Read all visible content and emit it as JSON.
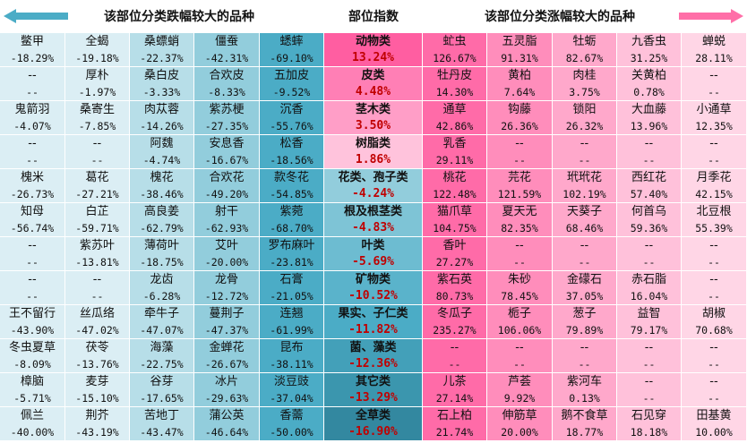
{
  "header": {
    "left_title": "该部位分类跌幅较大的品种",
    "center_title": "部位指数",
    "right_title": "该部位分类涨幅较大的品种",
    "left_arrow_color": "#4bacc6",
    "right_arrow_color": "#ff6fa8"
  },
  "colors": {
    "left_cols": [
      "#dbeef4",
      "#dbeef4",
      "#b7dee8",
      "#92cddc",
      "#4bacc6"
    ],
    "right_cols": [
      "#ff6ba8",
      "#ff8dbb",
      "#ffa8cb",
      "#ffc1da",
      "#ffd6e6"
    ],
    "mid_rows": [
      "#ff5ea1",
      "#ff7fb5",
      "#ff9ec7",
      "#ffc3dc",
      "#92cddc",
      "#7ec4d6",
      "#6dbcd1",
      "#5ab3cb",
      "#4bacc6",
      "#43a0b9",
      "#3b96ae",
      "#3388a0"
    ]
  },
  "rows": [
    {
      "category": {
        "name": "动物类",
        "value": "13.24%"
      },
      "down": [
        {
          "name": "鳖甲",
          "value": "-18.29%"
        },
        {
          "name": "全蝎",
          "value": "-19.18%"
        },
        {
          "name": "桑螵蛸",
          "value": "-22.37%"
        },
        {
          "name": "僵蚕",
          "value": "-42.31%"
        },
        {
          "name": "蟋蟀",
          "value": "-69.10%"
        }
      ],
      "up": [
        {
          "name": "虻虫",
          "value": "126.67%"
        },
        {
          "name": "五灵脂",
          "value": "91.31%"
        },
        {
          "name": "牡蛎",
          "value": "82.67%"
        },
        {
          "name": "九香虫",
          "value": "31.25%"
        },
        {
          "name": "蝉蜕",
          "value": "28.11%"
        }
      ]
    },
    {
      "category": {
        "name": "皮类",
        "value": "4.48%"
      },
      "down": [
        {
          "name": "--",
          "value": "--"
        },
        {
          "name": "厚朴",
          "value": "-1.97%"
        },
        {
          "name": "桑白皮",
          "value": "-3.33%"
        },
        {
          "name": "合欢皮",
          "value": "-8.33%"
        },
        {
          "name": "五加皮",
          "value": "-9.52%"
        }
      ],
      "up": [
        {
          "name": "牡丹皮",
          "value": "14.30%"
        },
        {
          "name": "黄柏",
          "value": "7.64%"
        },
        {
          "name": "肉桂",
          "value": "3.75%"
        },
        {
          "name": "关黄柏",
          "value": "0.78%"
        },
        {
          "name": "--",
          "value": "--"
        }
      ]
    },
    {
      "category": {
        "name": "茎木类",
        "value": "3.50%"
      },
      "down": [
        {
          "name": "鬼箭羽",
          "value": "-4.07%"
        },
        {
          "name": "桑寄生",
          "value": "-7.85%"
        },
        {
          "name": "肉苁蓉",
          "value": "-14.26%"
        },
        {
          "name": "紫苏梗",
          "value": "-27.35%"
        },
        {
          "name": "沉香",
          "value": "-55.76%"
        }
      ],
      "up": [
        {
          "name": "通草",
          "value": "42.86%"
        },
        {
          "name": "钩藤",
          "value": "26.36%"
        },
        {
          "name": "锁阳",
          "value": "26.32%"
        },
        {
          "name": "大血藤",
          "value": "13.96%"
        },
        {
          "name": "小通草",
          "value": "12.35%"
        }
      ]
    },
    {
      "category": {
        "name": "树脂类",
        "value": "1.86%"
      },
      "down": [
        {
          "name": "--",
          "value": "--"
        },
        {
          "name": "--",
          "value": "--"
        },
        {
          "name": "阿魏",
          "value": "-4.74%"
        },
        {
          "name": "安息香",
          "value": "-16.67%"
        },
        {
          "name": "松香",
          "value": "-18.56%"
        }
      ],
      "up": [
        {
          "name": "乳香",
          "value": "29.11%"
        },
        {
          "name": "--",
          "value": "--"
        },
        {
          "name": "--",
          "value": "--"
        },
        {
          "name": "--",
          "value": "--"
        },
        {
          "name": "--",
          "value": "--"
        }
      ]
    },
    {
      "category": {
        "name": "花类、孢子类",
        "value": "-4.24%"
      },
      "down": [
        {
          "name": "槐米",
          "value": "-26.73%"
        },
        {
          "name": "葛花",
          "value": "-27.21%"
        },
        {
          "name": "槐花",
          "value": "-38.46%"
        },
        {
          "name": "合欢花",
          "value": "-49.20%"
        },
        {
          "name": "款冬花",
          "value": "-54.85%"
        }
      ],
      "up": [
        {
          "name": "桃花",
          "value": "122.48%"
        },
        {
          "name": "芫花",
          "value": "121.59%"
        },
        {
          "name": "玳玳花",
          "value": "102.19%"
        },
        {
          "name": "西红花",
          "value": "57.40%"
        },
        {
          "name": "月季花",
          "value": "42.15%"
        }
      ]
    },
    {
      "category": {
        "name": "根及根茎类",
        "value": "-4.83%"
      },
      "down": [
        {
          "name": "知母",
          "value": "-56.74%"
        },
        {
          "name": "白芷",
          "value": "-59.71%"
        },
        {
          "name": "高良姜",
          "value": "-62.79%"
        },
        {
          "name": "射干",
          "value": "-62.93%"
        },
        {
          "name": "紫菀",
          "value": "-68.70%"
        }
      ],
      "up": [
        {
          "name": "猫爪草",
          "value": "104.75%"
        },
        {
          "name": "夏天无",
          "value": "82.35%"
        },
        {
          "name": "天葵子",
          "value": "68.46%"
        },
        {
          "name": "何首乌",
          "value": "59.36%"
        },
        {
          "name": "北豆根",
          "value": "55.39%"
        }
      ]
    },
    {
      "category": {
        "name": "叶类",
        "value": "-5.69%"
      },
      "down": [
        {
          "name": "--",
          "value": "--"
        },
        {
          "name": "紫苏叶",
          "value": "-13.81%"
        },
        {
          "name": "薄荷叶",
          "value": "-18.75%"
        },
        {
          "name": "艾叶",
          "value": "-20.00%"
        },
        {
          "name": "罗布麻叶",
          "value": "-23.81%"
        }
      ],
      "up": [
        {
          "name": "香叶",
          "value": "27.27%"
        },
        {
          "name": "--",
          "value": "--"
        },
        {
          "name": "--",
          "value": "--"
        },
        {
          "name": "--",
          "value": "--"
        },
        {
          "name": "--",
          "value": "--"
        }
      ]
    },
    {
      "category": {
        "name": "矿物类",
        "value": "-10.52%"
      },
      "down": [
        {
          "name": "--",
          "value": "--"
        },
        {
          "name": "--",
          "value": "--"
        },
        {
          "name": "龙齿",
          "value": "-6.28%"
        },
        {
          "name": "龙骨",
          "value": "-12.72%"
        },
        {
          "name": "石膏",
          "value": "-21.05%"
        }
      ],
      "up": [
        {
          "name": "紫石英",
          "value": "80.73%"
        },
        {
          "name": "朱砂",
          "value": "78.45%"
        },
        {
          "name": "金礞石",
          "value": "37.05%"
        },
        {
          "name": "赤石脂",
          "value": "16.04%"
        },
        {
          "name": "--",
          "value": "--"
        }
      ]
    },
    {
      "category": {
        "name": "果实、子仁类",
        "value": "-11.82%"
      },
      "down": [
        {
          "name": "王不留行",
          "value": "-43.90%"
        },
        {
          "name": "丝瓜络",
          "value": "-47.02%"
        },
        {
          "name": "牵牛子",
          "value": "-47.07%"
        },
        {
          "name": "蔓荆子",
          "value": "-47.37%"
        },
        {
          "name": "连翘",
          "value": "-61.99%"
        }
      ],
      "up": [
        {
          "name": "冬瓜子",
          "value": "235.27%"
        },
        {
          "name": "栀子",
          "value": "106.06%"
        },
        {
          "name": "葱子",
          "value": "79.89%"
        },
        {
          "name": "益智",
          "value": "79.17%"
        },
        {
          "name": "胡椒",
          "value": "70.68%"
        }
      ]
    },
    {
      "category": {
        "name": "菌、藻类",
        "value": "-12.36%"
      },
      "down": [
        {
          "name": "冬虫夏草",
          "value": "-8.09%"
        },
        {
          "name": "茯苓",
          "value": "-13.76%"
        },
        {
          "name": "海藻",
          "value": "-22.75%"
        },
        {
          "name": "金蝉花",
          "value": "-26.67%"
        },
        {
          "name": "昆布",
          "value": "-38.11%"
        }
      ],
      "up": [
        {
          "name": "--",
          "value": "--"
        },
        {
          "name": "--",
          "value": "--"
        },
        {
          "name": "--",
          "value": "--"
        },
        {
          "name": "--",
          "value": "--"
        },
        {
          "name": "--",
          "value": "--"
        }
      ]
    },
    {
      "category": {
        "name": "其它类",
        "value": "-13.29%"
      },
      "down": [
        {
          "name": "樟脑",
          "value": "-5.71%"
        },
        {
          "name": "麦芽",
          "value": "-15.10%"
        },
        {
          "name": "谷芽",
          "value": "-17.65%"
        },
        {
          "name": "冰片",
          "value": "-29.63%"
        },
        {
          "name": "淡豆豉",
          "value": "-37.04%"
        }
      ],
      "up": [
        {
          "name": "儿茶",
          "value": "27.14%"
        },
        {
          "name": "芦荟",
          "value": "9.92%"
        },
        {
          "name": "紫河车",
          "value": "0.13%"
        },
        {
          "name": "--",
          "value": "--"
        },
        {
          "name": "--",
          "value": "--"
        }
      ]
    },
    {
      "category": {
        "name": "全草类",
        "value": "-16.90%"
      },
      "down": [
        {
          "name": "佩兰",
          "value": "-40.00%"
        },
        {
          "name": "荆芥",
          "value": "-43.19%"
        },
        {
          "name": "苦地丁",
          "value": "-43.47%"
        },
        {
          "name": "蒲公英",
          "value": "-46.64%"
        },
        {
          "name": "香薷",
          "value": "-50.00%"
        }
      ],
      "up": [
        {
          "name": "石上柏",
          "value": "21.74%"
        },
        {
          "name": "伸筋草",
          "value": "20.00%"
        },
        {
          "name": "鹅不食草",
          "value": "18.77%"
        },
        {
          "name": "石见穿",
          "value": "18.18%"
        },
        {
          "name": "田基黄",
          "value": "10.00%"
        }
      ]
    }
  ]
}
